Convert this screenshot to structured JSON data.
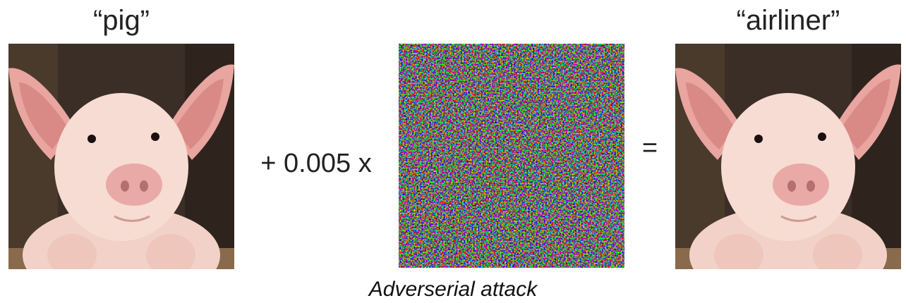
{
  "labels": {
    "original": "“pig”",
    "operation": "+ 0.005 x",
    "equals": "=",
    "result": "“airliner”"
  },
  "caption": "Adverserial attack"
}
